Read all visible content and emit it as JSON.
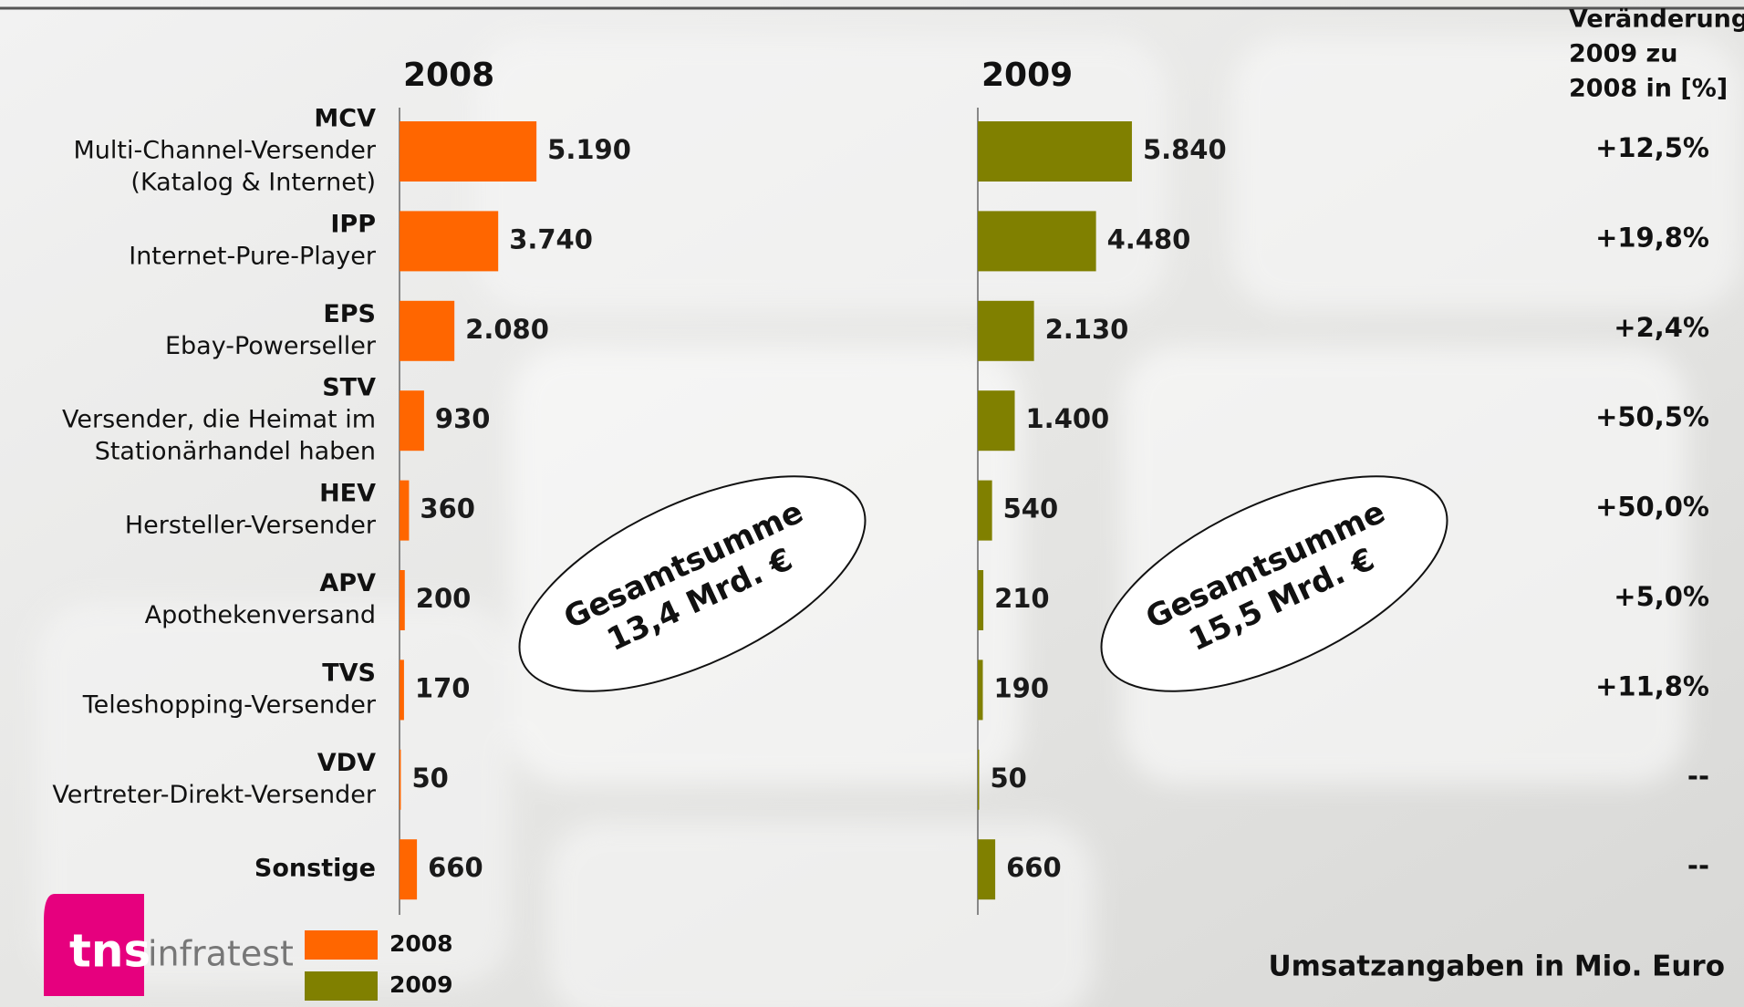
{
  "chart_data": {
    "type": "bar",
    "orientation": "horizontal",
    "categories": [
      "MCV",
      "IPP",
      "EPS",
      "STV",
      "HEV",
      "APV",
      "TVS",
      "VDV",
      "Sonstige"
    ],
    "descriptions": [
      [
        "Multi-Channel-Versender",
        "(Katalog & Internet)"
      ],
      [
        "Internet-Pure-Player"
      ],
      [
        "Ebay-Powerseller"
      ],
      [
        "Versender, die Heimat im",
        "Stationärhandel haben"
      ],
      [
        "Hersteller-Versender"
      ],
      [
        "Apothekenversand"
      ],
      [
        "Teleshopping-Versender"
      ],
      [
        "Vertreter-Direkt-Versender"
      ],
      []
    ],
    "series": [
      {
        "name": "2008",
        "color": "#ff6600",
        "values": [
          5190,
          3740,
          2080,
          930,
          360,
          200,
          170,
          50,
          660
        ],
        "value_labels": [
          "5.190",
          "3.740",
          "2.080",
          "930",
          "360",
          "200",
          "170",
          "50",
          "660"
        ]
      },
      {
        "name": "2009",
        "color": "#808000",
        "values": [
          5840,
          4480,
          2130,
          1400,
          540,
          210,
          190,
          50,
          660
        ],
        "value_labels": [
          "5.840",
          "4.480",
          "2.130",
          "1.400",
          "540",
          "210",
          "190",
          "50",
          "660"
        ]
      }
    ],
    "annotations": [
      [
        "Gesamtsumme",
        "13,4 Mrd. €"
      ],
      [
        "Gesamtsumme",
        "15,5 Mrd. €"
      ]
    ],
    "change": {
      "title": [
        "Veränderung",
        "2009 zu",
        "2008 in [%]"
      ],
      "labels": [
        "+12,5%",
        "+19,8%",
        "+2,4%",
        "+50,5%",
        "+50,0%",
        "+5,0%",
        "+11,8%",
        "--",
        "--"
      ]
    },
    "footnote": "Umsatzangaben in Mio. Euro"
  },
  "logo": {
    "brand": "tns",
    "name": "infratest"
  }
}
